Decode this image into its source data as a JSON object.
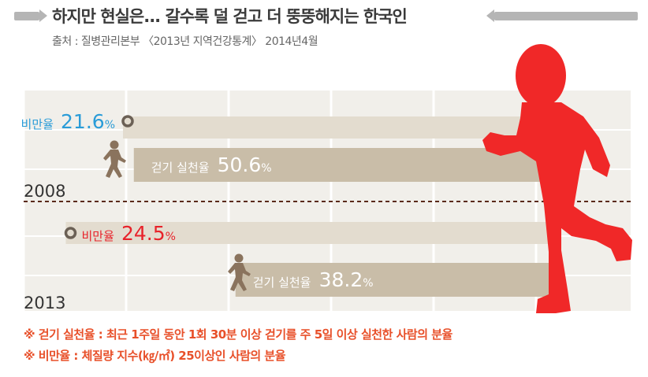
{
  "header": {
    "title": "하지만 현실은... 갈수록 덜 걷고 더 뚱뚱해지는 한국인",
    "source": "출처 : 질병관리본부 〈2013년 지역건강통계〉 2014년4월"
  },
  "chart_data": {
    "type": "bar",
    "categories": [
      "2008",
      "2013"
    ],
    "series": [
      {
        "name": "걷기 실천율",
        "values": [
          50.6,
          38.2
        ],
        "unit": "%",
        "color": "#c9bda8",
        "label_color": "#ffffff"
      },
      {
        "name": "비만율",
        "values": [
          21.6,
          24.5
        ],
        "unit": "%",
        "colors": [
          "#2a9cd8",
          "#e8222a"
        ]
      }
    ],
    "grid": true
  },
  "notes": [
    "※ 걷기 실천율 : 최근 1주일 동안 1회 30분 이상 걷기를 주 5일 이상 실천한 사람의 분율",
    "※ 비만율 : 체질량 지수(㎏/㎡) 25이상인 사람의 분율"
  ],
  "icons": {
    "walker": "walking-person-icon",
    "runner": "running-person-icon"
  },
  "colors": {
    "runner": "#f02828",
    "walker": "#8a735d",
    "grid_bg": "#f1efea",
    "note": "#e8502a"
  }
}
